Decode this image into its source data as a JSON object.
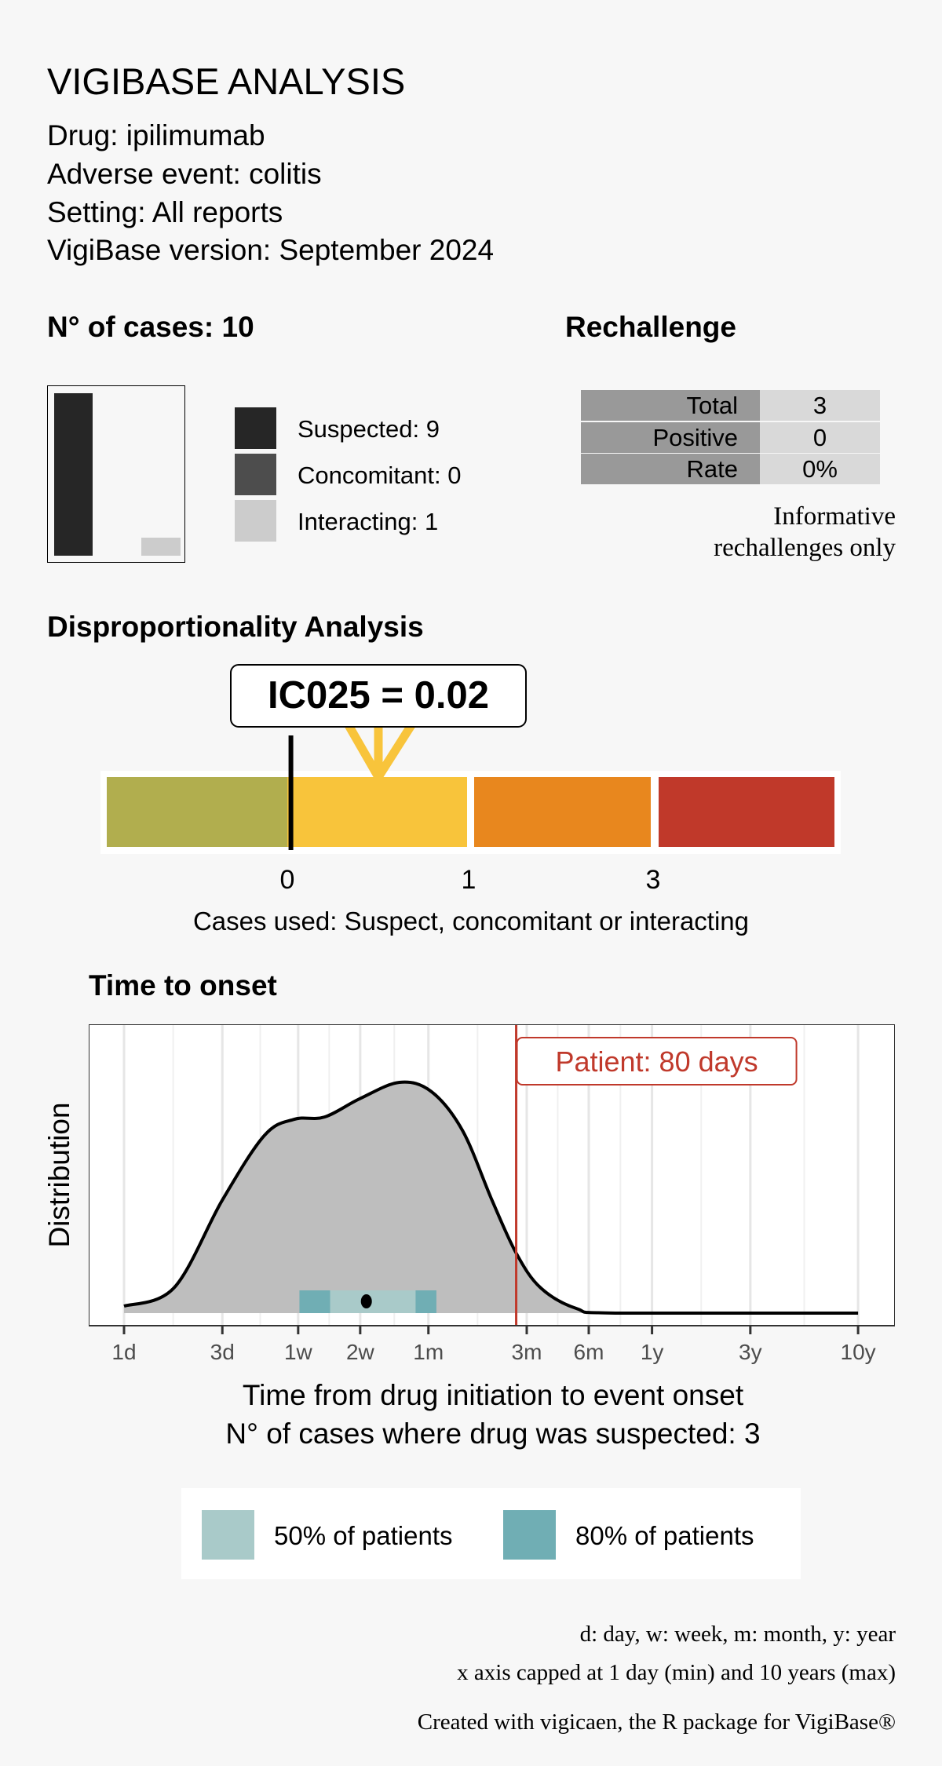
{
  "header": {
    "title": "VIGIBASE ANALYSIS",
    "drug": "Drug: ipilimumab",
    "event": "Adverse event: colitis",
    "setting": "Setting: All reports",
    "version": "VigiBase version: September 2024"
  },
  "cases": {
    "title": "N° of cases: 10",
    "items": [
      {
        "label": "Suspected: 9",
        "value": 9,
        "color": "#262626"
      },
      {
        "label": "Concomitant: 0",
        "value": 0,
        "color": "#4d4d4d"
      },
      {
        "label": "Interacting: 1",
        "value": 1,
        "color": "#cccccc"
      }
    ]
  },
  "rechallenge": {
    "title": "Rechallenge",
    "rows": [
      {
        "label": "Total",
        "value": "3"
      },
      {
        "label": "Positive",
        "value": "0"
      },
      {
        "label": "Rate",
        "value": "0%"
      }
    ],
    "note_line1": "Informative",
    "note_line2": "rechallenges only"
  },
  "disproportionality": {
    "title": "Disproportionality Analysis",
    "ic_label": "IC025 = 0.02",
    "ic025": 0.02,
    "ticks": [
      "0",
      "1",
      "3"
    ],
    "colors": [
      "#b1ae4e",
      "#f8c43b",
      "#e8871e",
      "#c0392a"
    ],
    "caption": "Cases used: Suspect, concomitant or interacting"
  },
  "chart_data": {
    "type": "area",
    "title": "Time to onset",
    "ylabel": "Distribution",
    "xlabel": "Time from drug initiation to event onset",
    "subtitle": "N° of cases where drug was suspected: 3",
    "x_scale": "log",
    "x_unit": "days",
    "xlim": [
      1,
      3650
    ],
    "x_ticks": [
      {
        "label": "1d",
        "value": 1
      },
      {
        "label": "3d",
        "value": 3
      },
      {
        "label": "1w",
        "value": 7
      },
      {
        "label": "2w",
        "value": 14
      },
      {
        "label": "1m",
        "value": 30
      },
      {
        "label": "3m",
        "value": 90
      },
      {
        "label": "6m",
        "value": 180
      },
      {
        "label": "1y",
        "value": 365
      },
      {
        "label": "3y",
        "value": 1095
      },
      {
        "label": "10y",
        "value": 3650
      }
    ],
    "density": {
      "x": [
        1,
        1.75,
        3.0,
        4.8,
        6.7,
        9.4,
        14,
        21.7,
        31,
        44,
        61,
        80,
        105,
        157,
        250,
        3650
      ],
      "y": [
        0.03,
        0.11,
        0.49,
        0.77,
        0.84,
        0.85,
        0.93,
        1.0,
        0.96,
        0.79,
        0.49,
        0.26,
        0.11,
        0.02,
        0,
        0
      ]
    },
    "fill_color": "#bebebe",
    "interval_80": [
      7.1,
      32.8
    ],
    "interval_50": [
      10,
      26
    ],
    "median": 15,
    "patient": {
      "label": "Patient: 80 days",
      "value": 80,
      "color": "#c0392b"
    },
    "grid": true,
    "legend": {
      "position": "bottom",
      "items": [
        {
          "label": "50% of patients",
          "color": "#a9cac9"
        },
        {
          "label": "80% of patients",
          "color": "#70aeb4"
        }
      ]
    }
  },
  "notes": {
    "line1": "d: day, w: week, m: month, y: year",
    "line2": "x axis capped at 1 day (min) and 10 years (max)",
    "footer": "Created with vigicaen, the R package for VigiBase®"
  }
}
